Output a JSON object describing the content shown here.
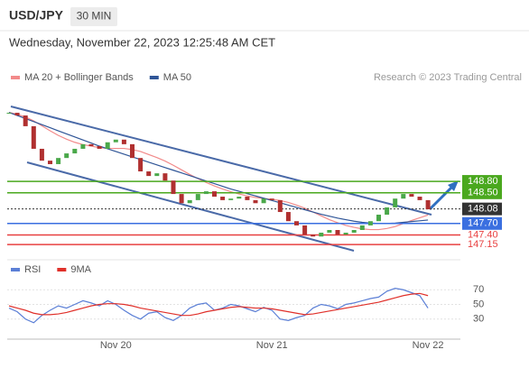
{
  "header": {
    "symbol": "USD/JPY",
    "interval": "30 MIN",
    "datetime": "Wednesday, November 22, 2023 12:25:48 AM CET",
    "source": "Research © 2023 Trading Central"
  },
  "chart_data": [
    {
      "type": "candlestick",
      "categories": [
        null,
        null,
        null,
        null,
        null,
        null,
        null,
        null,
        null,
        null,
        null,
        null,
        null,
        "Nov 20",
        null,
        null,
        null,
        null,
        null,
        null,
        null,
        null,
        null,
        null,
        null,
        null,
        null,
        null,
        null,
        null,
        null,
        null,
        "Nov 21",
        null,
        null,
        null,
        null,
        null,
        null,
        null,
        null,
        null,
        null,
        null,
        null,
        null,
        null,
        null,
        null,
        null,
        null,
        "Nov 22"
      ],
      "values": [
        150.59,
        150.52,
        150.24,
        149.65,
        149.34,
        149.25,
        149.41,
        149.53,
        149.65,
        149.77,
        149.72,
        149.65,
        149.82,
        149.89,
        149.77,
        149.41,
        149.06,
        148.94,
        149.01,
        148.82,
        148.47,
        148.23,
        148.31,
        148.47,
        148.54,
        148.4,
        148.31,
        148.35,
        148.4,
        148.31,
        148.23,
        148.35,
        148.31,
        148.0,
        147.76,
        147.65,
        147.41,
        147.36,
        147.46,
        147.53,
        147.41,
        147.46,
        147.53,
        147.65,
        147.76,
        147.93,
        148.12,
        148.35,
        148.47,
        148.4,
        148.31,
        148.07
      ],
      "up_color": "#4aa84a",
      "down_color": "#b03030",
      "ylim": [
        146.8,
        151.18
      ],
      "series": [
        {
          "name": "MA 20 + Bollinger Bands",
          "color": "#f28a8a",
          "values": [
            150.6,
            150.55,
            150.48,
            150.38,
            150.25,
            150.12,
            150.0,
            149.9,
            149.82,
            149.76,
            149.72,
            149.68,
            149.66,
            149.66,
            149.66,
            149.63,
            149.58,
            149.5,
            149.42,
            149.33,
            149.22,
            149.1,
            148.98,
            148.87,
            148.77,
            148.68,
            148.6,
            148.53,
            148.47,
            148.42,
            148.38,
            148.35,
            148.33,
            148.3,
            148.25,
            148.18,
            148.1,
            148.0,
            147.9,
            147.8,
            147.72,
            147.65,
            147.6,
            147.56,
            147.54,
            147.54,
            147.57,
            147.62,
            147.7,
            147.78,
            147.85,
            147.92
          ]
        },
        {
          "name": "MA 50",
          "color": "#2f5597",
          "values": [
            150.6,
            150.52,
            150.44,
            150.36,
            150.28,
            150.2,
            150.12,
            150.04,
            149.96,
            149.88,
            149.8,
            149.72,
            149.65,
            149.58,
            149.51,
            149.44,
            149.37,
            149.3,
            149.23,
            149.16,
            149.09,
            149.02,
            148.95,
            148.88,
            148.81,
            148.74,
            148.67,
            148.6,
            148.54,
            148.48,
            148.42,
            148.36,
            148.3,
            148.24,
            148.18,
            148.12,
            148.06,
            148.0,
            147.94,
            147.89,
            147.84,
            147.8,
            147.76,
            147.73,
            147.71,
            147.7,
            147.7,
            147.71,
            147.73,
            147.75,
            147.77,
            147.79
          ]
        }
      ],
      "levels": [
        {
          "value": 148.8,
          "label": "148.80",
          "color": "#4aa81e",
          "boxed": true,
          "line_style": "solid"
        },
        {
          "value": 148.5,
          "label": "148.50",
          "color": "#4aa81e",
          "boxed": true,
          "line_style": "solid"
        },
        {
          "value": 148.08,
          "label": "148.08",
          "color": "#333333",
          "boxed": true,
          "line_style": "dotted"
        },
        {
          "value": 147.7,
          "label": "147.70",
          "color": "#3a6fe0",
          "boxed": true,
          "line_style": "solid"
        },
        {
          "value": 147.4,
          "label": "147.40",
          "color": "#e84040",
          "boxed": false,
          "line_style": "solid"
        },
        {
          "value": 147.15,
          "label": "147.15",
          "color": "#e84040",
          "boxed": false,
          "line_style": "solid"
        }
      ]
    },
    {
      "type": "line",
      "ylim": [
        10,
        90
      ],
      "yticks": [
        70,
        50,
        30
      ],
      "series": [
        {
          "name": "RSI",
          "color": "#5b7fd6",
          "values": [
            45,
            40,
            30,
            25,
            35,
            42,
            48,
            45,
            50,
            55,
            52,
            48,
            55,
            50,
            42,
            35,
            30,
            38,
            40,
            32,
            28,
            35,
            45,
            50,
            52,
            42,
            45,
            50,
            48,
            44,
            40,
            46,
            42,
            30,
            28,
            32,
            35,
            45,
            50,
            48,
            44,
            50,
            52,
            55,
            58,
            60,
            68,
            72,
            70,
            66,
            62,
            45
          ]
        },
        {
          "name": "9MA",
          "color": "#e0302a",
          "values": [
            48,
            45,
            42,
            38,
            36,
            36,
            37,
            39,
            42,
            45,
            48,
            50,
            51,
            51,
            50,
            48,
            45,
            43,
            41,
            39,
            37,
            35,
            35,
            37,
            40,
            42,
            44,
            46,
            47,
            46,
            45,
            45,
            44,
            42,
            40,
            38,
            36,
            37,
            39,
            41,
            43,
            45,
            47,
            49,
            51,
            53,
            56,
            59,
            62,
            64,
            65,
            62
          ]
        }
      ]
    }
  ]
}
